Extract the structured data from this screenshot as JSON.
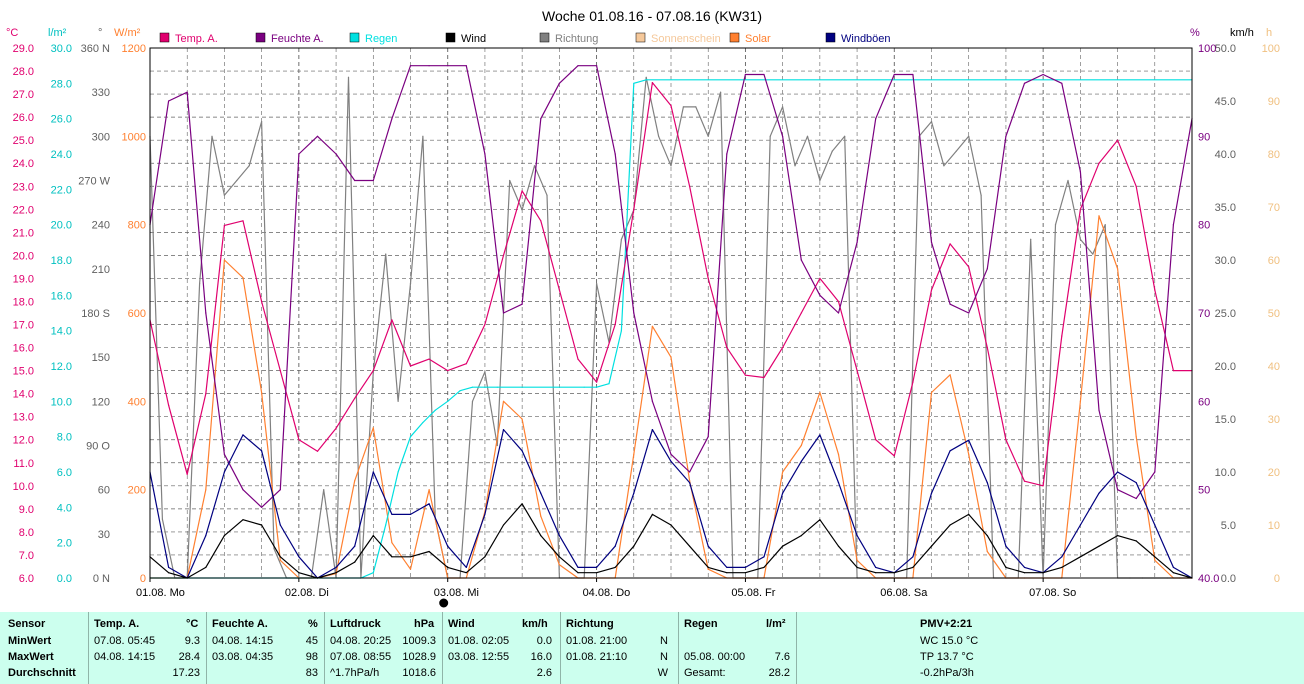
{
  "chart_data": {
    "type": "line",
    "title": "Woche 01.08.16 - 07.08.16 (KW31)",
    "legend": [
      {
        "label": "Temp. A.",
        "color": "#e0006e"
      },
      {
        "label": "Feuchte A.",
        "color": "#7a0080"
      },
      {
        "label": "Regen",
        "color": "#00e0e0"
      },
      {
        "label": "Wind",
        "color": "#000000"
      },
      {
        "label": "Richtung",
        "color": "#808080"
      },
      {
        "label": "Sonnenschein",
        "color": "#f5c89a"
      },
      {
        "label": "Solar",
        "color": "#ff8030"
      },
      {
        "label": "Windböen",
        "color": "#000080"
      }
    ],
    "x_ticks": [
      "01.08. Mo",
      "02.08. Di",
      "03.08. Mi",
      "04.08. Do",
      "05.08. Fr",
      "06.08. Sa",
      "07.08. So"
    ],
    "xlim_hours": [
      0,
      168
    ],
    "axes": {
      "temp": {
        "unit": "°C",
        "min": 6.0,
        "max": 29.0,
        "step": 1.0,
        "ticks": [
          "29.0",
          "28.0",
          "27.0",
          "26.0",
          "25.0",
          "24.0",
          "23.0",
          "22.0",
          "21.0",
          "20.0",
          "19.0",
          "18.0",
          "17.0",
          "16.0",
          "15.0",
          "14.0",
          "13.0",
          "12.0",
          "11.0",
          "10.0",
          "9.0",
          "8.0",
          "7.0",
          "6.0"
        ]
      },
      "rain": {
        "unit": "l/m²",
        "min": 0,
        "max": 30,
        "ticks": [
          "30.0",
          "28.0",
          "26.0",
          "24.0",
          "22.0",
          "20.0",
          "18.0",
          "16.0",
          "14.0",
          "12.0",
          "10.0",
          "8.0",
          "6.0",
          "4.0",
          "2.0",
          "0.0"
        ]
      },
      "direction": {
        "unit": "°",
        "min": 0,
        "max": 360,
        "ticks": [
          "360 N",
          "330",
          "300",
          "270 W",
          "240",
          "210",
          "180 S",
          "150",
          "120",
          "90 O",
          "60",
          "30",
          "0 N"
        ]
      },
      "solar": {
        "unit": "W/m²",
        "min": 0,
        "max": 1200,
        "ticks": [
          "1200",
          "1000",
          "800",
          "600",
          "400",
          "200",
          "0"
        ]
      },
      "humidity": {
        "unit": "%",
        "min": 40,
        "max": 100,
        "ticks": [
          "100",
          "90",
          "80",
          "70",
          "60",
          "50",
          "40.0"
        ]
      },
      "wind": {
        "unit": "km/h",
        "min": 0,
        "max": 50,
        "ticks": [
          "50.0",
          "45.0",
          "40.0",
          "35.0",
          "30.0",
          "25.0",
          "20.0",
          "15.0",
          "10.0",
          "5.0",
          "0.0"
        ]
      },
      "sunshine": {
        "unit": "h",
        "min": 0,
        "max": 100,
        "ticks": [
          "100",
          "90",
          "80",
          "70",
          "60",
          "50",
          "40",
          "30",
          "20",
          "10",
          "0"
        ]
      }
    },
    "series": [
      {
        "name": "Temp. A.",
        "axis": "temp",
        "color": "#e0006e",
        "x": [
          0,
          3,
          6,
          9,
          12,
          15,
          18,
          21,
          24,
          27,
          30,
          33,
          36,
          39,
          42,
          45,
          48,
          51,
          54,
          57,
          60,
          63,
          66,
          69,
          72,
          75,
          78,
          81,
          84,
          87,
          90,
          93,
          96,
          99,
          102,
          105,
          108,
          111,
          114,
          117,
          120,
          123,
          126,
          129,
          132,
          135,
          138,
          141,
          144,
          147,
          150,
          153,
          156,
          159,
          162,
          165,
          168
        ],
        "y": [
          17.2,
          13.5,
          10.5,
          14.0,
          21.3,
          21.5,
          18.0,
          15.0,
          12.0,
          11.5,
          12.5,
          13.8,
          15.0,
          17.2,
          15.2,
          15.5,
          15.0,
          15.3,
          17.0,
          20.0,
          22.8,
          21.5,
          18.5,
          15.5,
          14.5,
          17.0,
          22.0,
          27.5,
          26.5,
          23.0,
          19.0,
          16.0,
          14.8,
          14.7,
          16.0,
          17.5,
          19.0,
          18.0,
          15.0,
          12.0,
          11.3,
          14.5,
          18.5,
          20.5,
          19.5,
          16.0,
          12.0,
          10.2,
          10.0,
          16.5,
          22.0,
          24.0,
          25.0,
          23.0,
          18.5,
          15.0,
          15.0
        ]
      },
      {
        "name": "Feuchte A.",
        "axis": "humidity",
        "color": "#7a0080",
        "x": [
          0,
          3,
          6,
          9,
          12,
          15,
          18,
          21,
          24,
          27,
          30,
          33,
          36,
          39,
          42,
          45,
          48,
          51,
          54,
          57,
          60,
          63,
          66,
          69,
          72,
          75,
          78,
          81,
          84,
          87,
          90,
          93,
          96,
          99,
          102,
          105,
          108,
          111,
          114,
          117,
          120,
          123,
          126,
          129,
          132,
          135,
          138,
          141,
          144,
          147,
          150,
          153,
          156,
          159,
          162,
          165,
          168
        ],
        "y": [
          80,
          94,
          95,
          70,
          54,
          50,
          48,
          50,
          88,
          90,
          88,
          85,
          85,
          92,
          98,
          98,
          98,
          98,
          88,
          70,
          71,
          92,
          96,
          98,
          98,
          88,
          70,
          60,
          54,
          52,
          56,
          88,
          97,
          97,
          90,
          76,
          72,
          70,
          78,
          92,
          97,
          97,
          78,
          71,
          70,
          75,
          90,
          96,
          97,
          96,
          86,
          59,
          50,
          49,
          52,
          80,
          92
        ]
      },
      {
        "name": "Regen",
        "axis": "rain",
        "color": "#00e0e0",
        "x": [
          0,
          34,
          36,
          38,
          40,
          42,
          44,
          46,
          48,
          50,
          52,
          54,
          56,
          70,
          72,
          74,
          76,
          78,
          80,
          168
        ],
        "y": [
          0,
          0,
          0.3,
          3,
          6,
          8,
          8.8,
          9.5,
          10,
          10.6,
          10.8,
          10.8,
          10.8,
          10.8,
          10.8,
          11,
          14,
          28,
          28.2,
          28.2
        ]
      },
      {
        "name": "Wind",
        "axis": "wind",
        "color": "#000000",
        "x": [
          0,
          3,
          6,
          9,
          12,
          15,
          18,
          21,
          24,
          27,
          30,
          33,
          36,
          39,
          42,
          45,
          48,
          51,
          54,
          57,
          60,
          63,
          66,
          69,
          72,
          75,
          78,
          81,
          84,
          87,
          90,
          93,
          96,
          99,
          102,
          105,
          108,
          111,
          114,
          117,
          120,
          123,
          126,
          129,
          132,
          135,
          138,
          141,
          144,
          147,
          150,
          153,
          156,
          159,
          162,
          165,
          168
        ],
        "y": [
          2,
          0.5,
          0,
          1,
          4,
          5.5,
          5,
          2,
          0.5,
          0,
          0.5,
          1.5,
          4,
          2,
          2,
          2.5,
          1,
          0.5,
          2,
          5,
          7,
          4,
          2,
          0.5,
          0.5,
          1,
          3,
          6,
          5,
          3,
          1,
          0.5,
          0.5,
          1,
          3,
          4,
          5.5,
          3,
          1,
          0.5,
          0.5,
          1,
          3,
          5,
          6,
          4,
          1,
          0.5,
          0.5,
          1,
          2,
          3,
          4,
          3.5,
          2,
          0.5,
          0
        ]
      },
      {
        "name": "Windböen",
        "axis": "wind",
        "color": "#000080",
        "x": [
          0,
          3,
          6,
          9,
          12,
          15,
          18,
          21,
          24,
          27,
          30,
          33,
          36,
          39,
          42,
          45,
          48,
          51,
          54,
          57,
          60,
          63,
          66,
          69,
          72,
          75,
          78,
          81,
          84,
          87,
          90,
          93,
          96,
          99,
          102,
          105,
          108,
          111,
          114,
          117,
          120,
          123,
          126,
          129,
          132,
          135,
          138,
          141,
          144,
          147,
          150,
          153,
          156,
          159,
          162,
          165,
          168
        ],
        "y": [
          10,
          1,
          0,
          4,
          10,
          13.5,
          12,
          5,
          2,
          0,
          1,
          3,
          10,
          6,
          6,
          7,
          3,
          1,
          6,
          14,
          12,
          8,
          4,
          1,
          1,
          3,
          8,
          14,
          11,
          9,
          3,
          1,
          1,
          2,
          8,
          11,
          13.5,
          9,
          4,
          1,
          0.5,
          2,
          8,
          12,
          13,
          9,
          3,
          1,
          0.5,
          2,
          5,
          8,
          10,
          9,
          5,
          1,
          0
        ]
      },
      {
        "name": "Solar",
        "axis": "solar",
        "color": "#ff8030",
        "x": [
          0,
          3,
          6,
          9,
          12,
          15,
          18,
          21,
          24,
          27,
          30,
          33,
          36,
          39,
          42,
          45,
          48,
          51,
          54,
          57,
          60,
          63,
          66,
          69,
          72,
          75,
          78,
          81,
          84,
          87,
          90,
          93,
          96,
          99,
          102,
          105,
          108,
          111,
          114,
          117,
          120,
          123,
          126,
          129,
          132,
          135,
          138,
          141,
          144,
          147,
          150,
          153,
          156,
          159,
          162,
          165,
          168
        ],
        "y": [
          0,
          0,
          0,
          200,
          720,
          680,
          420,
          40,
          0,
          0,
          10,
          220,
          340,
          80,
          20,
          200,
          0,
          0,
          150,
          400,
          360,
          140,
          30,
          0,
          0,
          0,
          280,
          570,
          500,
          220,
          20,
          0,
          0,
          0,
          240,
          300,
          420,
          280,
          40,
          0,
          0,
          0,
          420,
          460,
          280,
          60,
          0,
          0,
          0,
          0,
          400,
          820,
          700,
          320,
          40,
          0,
          0
        ]
      },
      {
        "name": "Richtung",
        "axis": "direction",
        "color": "#808080",
        "x": [
          0,
          2,
          4,
          6,
          8,
          10,
          12,
          14,
          16,
          18,
          20,
          22,
          24,
          26,
          28,
          30,
          32,
          34,
          36,
          38,
          40,
          42,
          44,
          46,
          48,
          50,
          52,
          54,
          56,
          58,
          60,
          62,
          64,
          66,
          68,
          70,
          72,
          74,
          76,
          78,
          80,
          82,
          84,
          86,
          88,
          90,
          92,
          94,
          96,
          98,
          100,
          102,
          104,
          106,
          108,
          110,
          112,
          114,
          116,
          118,
          120,
          122,
          124,
          126,
          128,
          130,
          132,
          134,
          136,
          138,
          140,
          142,
          144,
          146,
          148,
          150,
          152,
          154,
          156,
          158,
          160,
          162,
          164,
          166,
          168
        ],
        "y": [
          300,
          40,
          0,
          0,
          200,
          300,
          260,
          270,
          280,
          310,
          20,
          0,
          0,
          0,
          60,
          0,
          340,
          0,
          140,
          220,
          120,
          200,
          300,
          40,
          0,
          0,
          120,
          140,
          90,
          270,
          250,
          280,
          260,
          0,
          0,
          0,
          200,
          160,
          230,
          250,
          340,
          300,
          280,
          320,
          320,
          300,
          330,
          0,
          0,
          0,
          300,
          320,
          280,
          300,
          270,
          290,
          300,
          0,
          0,
          0,
          0,
          0,
          300,
          310,
          280,
          290,
          300,
          260,
          0,
          0,
          0,
          230,
          0,
          240,
          270,
          230,
          220,
          240,
          0,
          0,
          0,
          0,
          0,
          0,
          0
        ]
      }
    ]
  },
  "table": {
    "headers": {
      "sensor": "Sensor",
      "temp": "Temp. A.",
      "temp_unit": "°C",
      "hum": "Feuchte A.",
      "hum_unit": "%",
      "press": "Luftdruck",
      "press_unit": "hPa",
      "wind": "Wind",
      "wind_unit": "km/h",
      "dir": "Richtung",
      "rain": "Regen",
      "rain_unit": "l/m²",
      "pmv": "PMV+2:21"
    },
    "rows": [
      {
        "label": "MinWert",
        "temp_t": "07.08.  05:45",
        "temp_v": "9.3",
        "hum_t": "04.08.  14:15",
        "hum_v": "45",
        "press_t": "04.08.  20:25",
        "press_v": "1009.3",
        "wind_t": "01.08.  02:05",
        "wind_v": "0.0",
        "dir_t": "01.08.  21:00",
        "dir_v": "N",
        "rain_t": "",
        "rain_v": "",
        "pmv": "WC 15.0 °C"
      },
      {
        "label": "MaxWert",
        "temp_t": "04.08.  14:15",
        "temp_v": "28.4",
        "hum_t": "03.08.  04:35",
        "hum_v": "98",
        "press_t": "07.08.  08:55",
        "press_v": "1028.9",
        "wind_t": "03.08.  12:55",
        "wind_v": "16.0",
        "dir_t": "01.08.  21:10",
        "dir_v": "N",
        "rain_t": "05.08.  00:00",
        "rain_v": "7.6",
        "pmv": "TP 13.7 °C"
      },
      {
        "label": "Durchschnitt",
        "temp_t": "",
        "temp_v": "17.23",
        "hum_t": "",
        "hum_v": "83",
        "press_t": "^1.7hPa/h",
        "press_v": "1018.6",
        "wind_t": "",
        "wind_v": "2.6",
        "dir_t": "",
        "dir_v": "W",
        "rain_t": "Gesamt:",
        "rain_v": "28.2",
        "pmv": "-0.2hPa/3h"
      }
    ]
  }
}
